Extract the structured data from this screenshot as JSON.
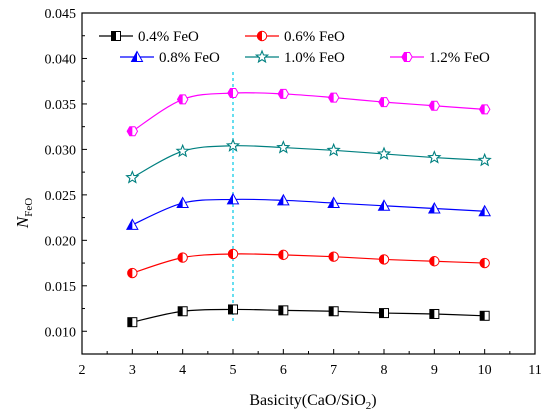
{
  "chart_data": {
    "type": "line",
    "x": [
      3,
      4,
      5,
      6,
      7,
      8,
      9,
      10
    ],
    "xlabel": "Basicity(CaO/SiO",
    "xlabel_sub": "2",
    "xlabel_tail": ")",
    "ylabel": "N",
    "ylabel_sub": "FeO",
    "xlim": [
      2,
      11
    ],
    "ylim": [
      0.0075,
      0.045
    ],
    "xticks": [
      2,
      3,
      4,
      5,
      6,
      7,
      8,
      9,
      10,
      11
    ],
    "xtick_labels": [
      "2",
      "3",
      "4",
      "5",
      "6",
      "7",
      "8",
      "9",
      "10",
      "11"
    ],
    "yticks": [
      0.01,
      0.015,
      0.02,
      0.025,
      0.03,
      0.035,
      0.04,
      0.045
    ],
    "ytick_labels": [
      "0.010",
      "0.015",
      "0.020",
      "0.025",
      "0.030",
      "0.035",
      "0.040",
      "0.045"
    ],
    "reference_line_x": 5,
    "grid": false,
    "legend_position": "top",
    "series": [
      {
        "name": "0.4% FeO",
        "color": "#000000",
        "marker": "square",
        "values": [
          0.011,
          0.0122,
          0.0124,
          0.0123,
          0.0122,
          0.012,
          0.0119,
          0.0117
        ]
      },
      {
        "name": "0.6% FeO",
        "color": "#ff0000",
        "marker": "circle",
        "values": [
          0.0164,
          0.0181,
          0.0185,
          0.0184,
          0.0182,
          0.0179,
          0.0177,
          0.0175
        ]
      },
      {
        "name": "0.8% FeO",
        "color": "#0000ff",
        "marker": "triangle",
        "values": [
          0.0217,
          0.0241,
          0.0245,
          0.0244,
          0.0241,
          0.0238,
          0.0235,
          0.0232
        ]
      },
      {
        "name": "1.0% FeO",
        "color": "#008080",
        "marker": "star",
        "values": [
          0.0269,
          0.0298,
          0.0304,
          0.0302,
          0.0299,
          0.0295,
          0.0291,
          0.0288
        ]
      },
      {
        "name": "1.2% FeO",
        "color": "#ff00ff",
        "marker": "hexagon",
        "values": [
          0.032,
          0.0355,
          0.0362,
          0.0361,
          0.0357,
          0.0352,
          0.0348,
          0.0344
        ]
      }
    ]
  }
}
